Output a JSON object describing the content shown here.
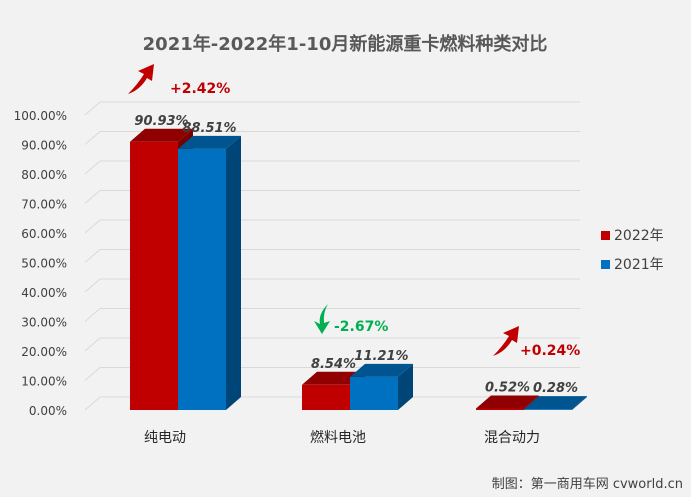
{
  "chart_data": {
    "type": "bar",
    "title": "2021年-2022年1-10月新能源重卡燃料种类对比",
    "categories": [
      "纯电动",
      "燃料电池",
      "混合动力"
    ],
    "series": [
      {
        "name": "2022年",
        "values": [
          90.93,
          8.54,
          0.52
        ],
        "labels": [
          "90.93%",
          "8.54%",
          "0.52%"
        ],
        "color": "#c00000"
      },
      {
        "name": "2021年",
        "values": [
          88.51,
          11.21,
          0.28
        ],
        "labels": [
          "88.51%",
          "11.21%",
          "0.28%"
        ],
        "color": "#0070c0"
      }
    ],
    "ylim": [
      0,
      100
    ],
    "yticks": [
      "0.00%",
      "10.00%",
      "20.00%",
      "30.00%",
      "40.00%",
      "50.00%",
      "60.00%",
      "70.00%",
      "80.00%",
      "90.00%",
      "100.00%"
    ],
    "legend_position": "right",
    "grid": true,
    "annotations": [
      {
        "category": "纯电动",
        "text": "+2.42%",
        "direction": "up",
        "color": "#c00000"
      },
      {
        "category": "燃料电池",
        "text": "-2.67%",
        "direction": "down",
        "color": "#00b050"
      },
      {
        "category": "混合动力",
        "text": "+0.24%",
        "direction": "up",
        "color": "#c00000"
      }
    ]
  },
  "footer": {
    "credit": "制图：第一商用车网 cvworld.cn"
  },
  "colors": {
    "background": "#f2f2f2",
    "grid": "#d9d9d9",
    "axis_text": "#404040",
    "title": "#595959"
  }
}
